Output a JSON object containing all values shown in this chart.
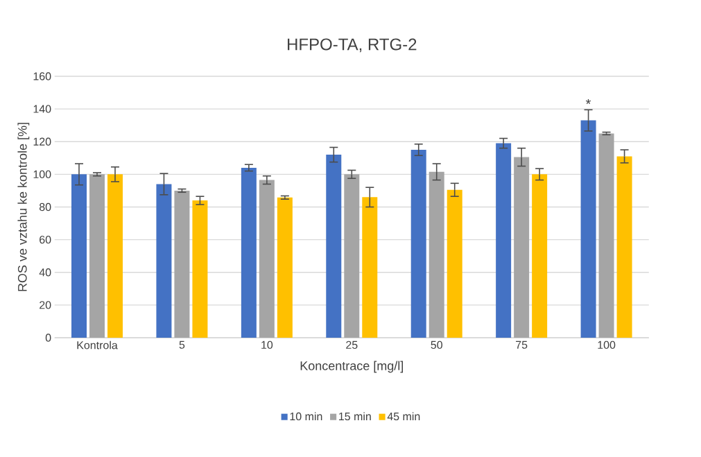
{
  "chart_data": {
    "type": "bar",
    "title": "HFPO-TA, RTG-2",
    "xlabel": "Koncentrace [mg/l]",
    "ylabel": "ROS ve vztahu ke kontrole [%]",
    "categories": [
      "Kontrola",
      "5",
      "10",
      "25",
      "50",
      "75",
      "100"
    ],
    "series": [
      {
        "name": "10 min",
        "color": "#4472c4",
        "values": [
          100,
          94,
          104,
          112,
          115,
          119,
          133
        ],
        "errors": [
          6.5,
          6.5,
          2,
          4.5,
          3.5,
          3,
          6.5
        ]
      },
      {
        "name": "15 min",
        "color": "#a5a5a5",
        "values": [
          100,
          90,
          96.5,
          100,
          101.5,
          110.5,
          125
        ],
        "errors": [
          1,
          1,
          2.5,
          2.5,
          5,
          5.5,
          0.8
        ]
      },
      {
        "name": "45 min",
        "color": "#ffc000",
        "values": [
          100,
          84,
          85.8,
          86,
          90.5,
          100,
          111
        ],
        "errors": [
          4.5,
          2.5,
          1,
          6,
          4,
          3.5,
          4
        ]
      }
    ],
    "ylim": [
      0,
      160
    ],
    "yticks": [
      0,
      20,
      40,
      60,
      80,
      100,
      120,
      140,
      160
    ],
    "grid": "y",
    "legend": "bottom",
    "annotations": [
      "*"
    ]
  }
}
